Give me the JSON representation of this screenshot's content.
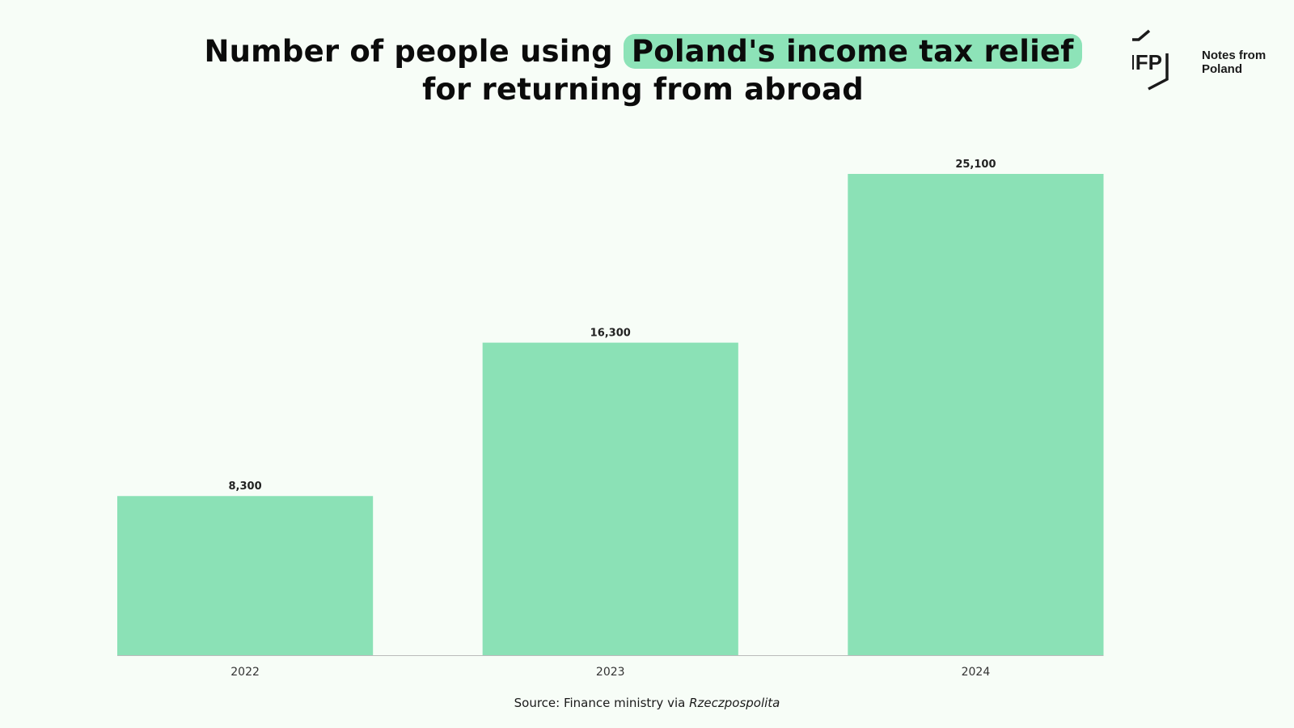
{
  "header": {
    "title_pre": "Number of people using ",
    "title_highlight": "Poland's income tax relief",
    "title_post": "for returning from abroad",
    "logo_mark": "NFP",
    "logo_line1": "Notes from",
    "logo_line2": "Poland"
  },
  "footer": {
    "source_prefix": "Source: Finance ministry via ",
    "source_publication": "Rzeczpospolita"
  },
  "colors": {
    "bar": "#8be1b6",
    "background": "#f7fdf7",
    "highlight": "#8de3b8",
    "axis": "#bbbbbb"
  },
  "chart_data": {
    "type": "bar",
    "categories": [
      "2022",
      "2023",
      "2024"
    ],
    "values": [
      8300,
      16300,
      25100
    ],
    "value_labels": [
      "8,300",
      "16,300",
      "25,100"
    ],
    "ylim": [
      0,
      25100
    ],
    "grid": false,
    "legend": "none"
  }
}
